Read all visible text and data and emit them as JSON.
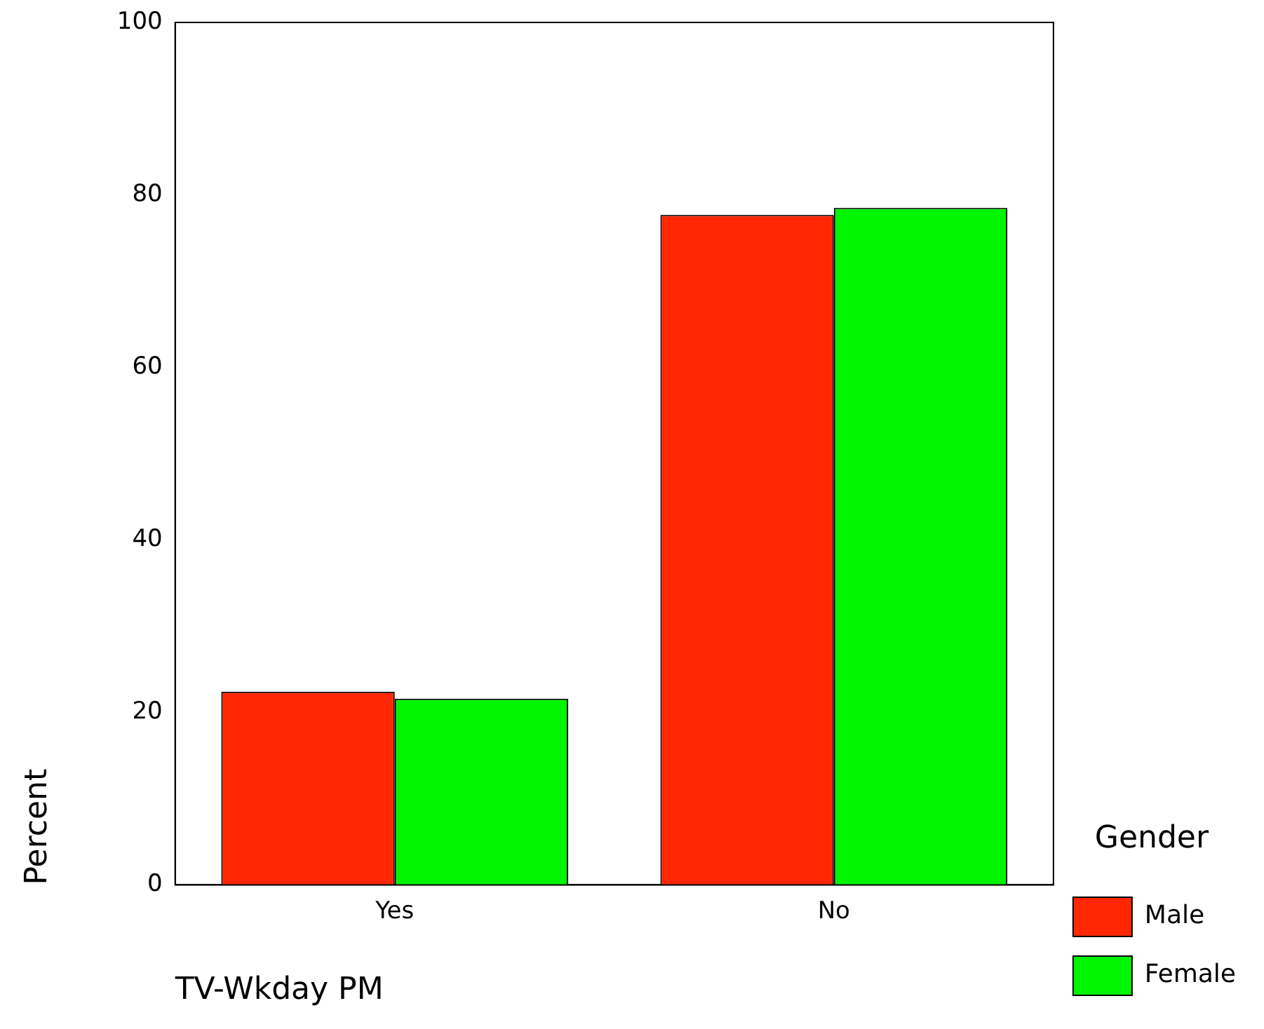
{
  "chart_data": {
    "type": "bar",
    "xlabel": "TV-Wkday PM",
    "ylabel": "Percent",
    "legend_title": "Gender",
    "categories": [
      "Yes",
      "No"
    ],
    "series": [
      {
        "name": "Male",
        "color": "#ff2600",
        "values": [
          22.4,
          77.7
        ]
      },
      {
        "name": "Female",
        "color": "#00f500",
        "values": [
          21.6,
          78.5
        ]
      }
    ],
    "ylim": [
      0,
      100
    ],
    "yticks": [
      0,
      20,
      40,
      60,
      80,
      100
    ],
    "grid": false,
    "legend": "right"
  }
}
